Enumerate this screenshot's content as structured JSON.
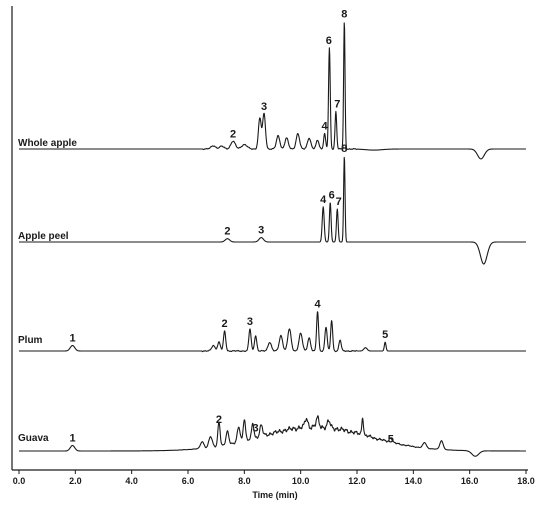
{
  "chart_data": {
    "type": "line",
    "title": "",
    "xlabel": "Time (min)",
    "ylabel": "",
    "xlim": [
      0,
      18
    ],
    "x_ticks": [
      0,
      2,
      4,
      6,
      8,
      10,
      12,
      14,
      16,
      18
    ],
    "x_tick_labels": [
      "0.0",
      "2.0",
      "4.0",
      "6.0",
      "8.0",
      "10.0",
      "12.0",
      "14.0",
      "16.0",
      "18.0"
    ],
    "grid": false,
    "series": [
      {
        "name": "Whole apple",
        "baseline": 0,
        "peaks": [
          {
            "x": 6.9,
            "h": 0.03,
            "w": 0.08
          },
          {
            "x": 7.2,
            "h": 0.025,
            "w": 0.08
          },
          {
            "x": 7.6,
            "h": 0.07,
            "w": 0.08
          },
          {
            "x": 8.0,
            "h": 0.04,
            "w": 0.1
          },
          {
            "x": 8.55,
            "h": 0.28,
            "w": 0.05
          },
          {
            "x": 8.7,
            "h": 0.32,
            "w": 0.05
          },
          {
            "x": 9.2,
            "h": 0.12,
            "w": 0.06
          },
          {
            "x": 9.5,
            "h": 0.1,
            "w": 0.06
          },
          {
            "x": 9.9,
            "h": 0.14,
            "w": 0.06
          },
          {
            "x": 10.3,
            "h": 0.1,
            "w": 0.06
          },
          {
            "x": 10.6,
            "h": 0.08,
            "w": 0.05
          },
          {
            "x": 10.85,
            "h": 0.14,
            "w": 0.035
          },
          {
            "x": 11.02,
            "h": 0.92,
            "w": 0.03
          },
          {
            "x": 11.25,
            "h": 0.34,
            "w": 0.03
          },
          {
            "x": 11.55,
            "h": 1.16,
            "w": 0.025
          },
          {
            "x": 12.6,
            "h": -0.01,
            "w": 0.3
          },
          {
            "x": 16.4,
            "h": -0.09,
            "w": 0.12
          }
        ]
      },
      {
        "name": "Apple peel",
        "baseline": 0,
        "peaks": [
          {
            "x": 7.4,
            "h": 0.03,
            "w": 0.08
          },
          {
            "x": 8.6,
            "h": 0.04,
            "w": 0.08
          },
          {
            "x": 10.8,
            "h": 0.32,
            "w": 0.035
          },
          {
            "x": 11.05,
            "h": 0.36,
            "w": 0.03
          },
          {
            "x": 11.3,
            "h": 0.3,
            "w": 0.03
          },
          {
            "x": 11.55,
            "h": 0.78,
            "w": 0.025
          },
          {
            "x": 16.5,
            "h": -0.2,
            "w": 0.12
          }
        ]
      },
      {
        "name": "Plum",
        "baseline": 0,
        "peaks": [
          {
            "x": 1.9,
            "h": 0.05,
            "w": 0.08
          },
          {
            "x": 6.9,
            "h": 0.05,
            "w": 0.06
          },
          {
            "x": 7.1,
            "h": 0.08,
            "w": 0.05
          },
          {
            "x": 7.3,
            "h": 0.18,
            "w": 0.04
          },
          {
            "x": 8.2,
            "h": 0.2,
            "w": 0.04
          },
          {
            "x": 8.4,
            "h": 0.14,
            "w": 0.04
          },
          {
            "x": 8.9,
            "h": 0.08,
            "w": 0.06
          },
          {
            "x": 9.3,
            "h": 0.14,
            "w": 0.06
          },
          {
            "x": 9.6,
            "h": 0.2,
            "w": 0.06
          },
          {
            "x": 10.0,
            "h": 0.16,
            "w": 0.06
          },
          {
            "x": 10.3,
            "h": 0.12,
            "w": 0.05
          },
          {
            "x": 10.6,
            "h": 0.36,
            "w": 0.035
          },
          {
            "x": 10.9,
            "h": 0.22,
            "w": 0.04
          },
          {
            "x": 11.1,
            "h": 0.28,
            "w": 0.035
          },
          {
            "x": 11.4,
            "h": 0.1,
            "w": 0.04
          },
          {
            "x": 12.3,
            "h": 0.03,
            "w": 0.06
          },
          {
            "x": 13.0,
            "h": 0.08,
            "w": 0.03
          }
        ]
      },
      {
        "name": "Guava",
        "baseline": 0,
        "broad": {
          "x": 10.5,
          "h": 0.22,
          "w": 1.9
        },
        "peaks": [
          {
            "x": 1.9,
            "h": 0.05,
            "w": 0.08
          },
          {
            "x": 6.5,
            "h": 0.06,
            "w": 0.06
          },
          {
            "x": 6.8,
            "h": 0.1,
            "w": 0.06
          },
          {
            "x": 7.1,
            "h": 0.22,
            "w": 0.04
          },
          {
            "x": 7.4,
            "h": 0.12,
            "w": 0.05
          },
          {
            "x": 7.8,
            "h": 0.14,
            "w": 0.05
          },
          {
            "x": 8.0,
            "h": 0.2,
            "w": 0.04
          },
          {
            "x": 8.3,
            "h": 0.14,
            "w": 0.04
          },
          {
            "x": 8.6,
            "h": 0.1,
            "w": 0.05
          },
          {
            "x": 10.2,
            "h": 0.08,
            "w": 0.05
          },
          {
            "x": 10.6,
            "h": 0.08,
            "w": 0.05
          },
          {
            "x": 11.0,
            "h": 0.06,
            "w": 0.05
          },
          {
            "x": 12.2,
            "h": 0.16,
            "w": 0.03
          },
          {
            "x": 13.2,
            "h": 0.04,
            "w": 0.05
          },
          {
            "x": 14.4,
            "h": 0.05,
            "w": 0.06
          },
          {
            "x": 15.0,
            "h": 0.08,
            "w": 0.06
          },
          {
            "x": 16.2,
            "h": -0.05,
            "w": 0.12
          }
        ]
      }
    ],
    "annotations": [
      {
        "series": 0,
        "text": "2",
        "x": 7.6,
        "y": 0.07
      },
      {
        "series": 0,
        "text": "3",
        "x": 8.7,
        "y": 0.32
      },
      {
        "series": 0,
        "text": "4",
        "x": 10.85,
        "y": 0.14
      },
      {
        "series": 0,
        "text": "6",
        "x": 11.0,
        "y": 0.92
      },
      {
        "series": 0,
        "text": "7",
        "x": 11.3,
        "y": 0.34
      },
      {
        "series": 0,
        "text": "8",
        "x": 11.55,
        "y": 1.16
      },
      {
        "series": 1,
        "text": "2",
        "x": 7.4,
        "y": 0.03
      },
      {
        "series": 1,
        "text": "3",
        "x": 8.6,
        "y": 0.04
      },
      {
        "series": 1,
        "text": "4",
        "x": 10.8,
        "y": 0.32
      },
      {
        "series": 1,
        "text": "6",
        "x": 11.1,
        "y": 0.36
      },
      {
        "series": 1,
        "text": "7",
        "x": 11.35,
        "y": 0.3
      },
      {
        "series": 1,
        "text": "8",
        "x": 11.55,
        "y": 0.78
      },
      {
        "series": 2,
        "text": "1",
        "x": 1.9,
        "y": 0.05
      },
      {
        "series": 2,
        "text": "2",
        "x": 7.3,
        "y": 0.18
      },
      {
        "series": 2,
        "text": "3",
        "x": 8.2,
        "y": 0.2
      },
      {
        "series": 2,
        "text": "4",
        "x": 10.6,
        "y": 0.36
      },
      {
        "series": 2,
        "text": "5",
        "x": 13.0,
        "y": 0.08
      },
      {
        "series": 3,
        "text": "1",
        "x": 1.9,
        "y": 0.05
      },
      {
        "series": 3,
        "text": "2",
        "x": 7.1,
        "y": 0.22
      },
      {
        "series": 3,
        "text": "3",
        "x": 8.4,
        "y": 0.14
      },
      {
        "series": 3,
        "text": "5",
        "x": 13.2,
        "y": 0.04
      }
    ]
  }
}
